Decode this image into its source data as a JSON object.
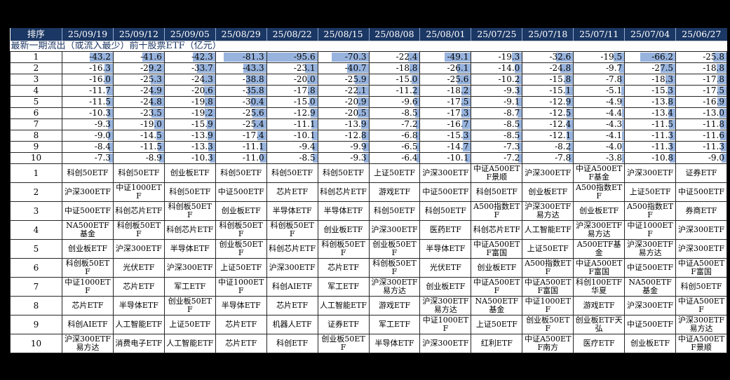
{
  "colors": {
    "page_bg": "#000000",
    "header_bg": "#1B3764",
    "header_text": "#FFFFFF",
    "header_divider": "#93ABD0",
    "bar_fill": "#98B4DE",
    "grid_line": "#262626",
    "subtitle_text": "#1F3864",
    "cell_text": "#000000"
  },
  "chart_data": {
    "type": "table",
    "title": "最新一期流出（或流入最少）前十股票ETF（亿元）",
    "rank_header": "排序",
    "date_columns": [
      "25/09/19",
      "25/09/12",
      "25/09/05",
      "25/08/29",
      "25/08/22",
      "25/08/15",
      "25/08/08",
      "25/08/01",
      "25/07/25",
      "25/07/18",
      "25/07/11",
      "25/07/04",
      "25/06/27"
    ],
    "ranks": [
      "1",
      "2",
      "3",
      "4",
      "5",
      "6",
      "7",
      "8",
      "9",
      "10"
    ],
    "bar_scale_max": 95.6,
    "flow_rows": [
      [
        "-43.2",
        "-41.6",
        "-42.3",
        "-81.3",
        "-95.6",
        "-70.3",
        "-22.4",
        "-49.1",
        "-19.3",
        "-32.6",
        "-19.5",
        "-66.2",
        "-25.8"
      ],
      [
        "-16.3",
        "-29.2",
        "-33.7",
        "-43.3",
        "-23.1",
        "-40.7",
        "-18.8",
        "-26.1",
        "-14.0",
        "-24.8",
        "-9.7",
        "-27.5",
        "-18.8"
      ],
      [
        "-16.0",
        "-25.3",
        "-24.3",
        "-38.8",
        "-20.0",
        "-25.9",
        "-15.0",
        "-25.6",
        "-10.2",
        "-15.8",
        "-7.8",
        "-18.3",
        "-17.8"
      ],
      [
        "-11.7",
        "-24.9",
        "-20.6",
        "-35.8",
        "-17.8",
        "-22.1",
        "-11.2",
        "-18.2",
        "-9.3",
        "-15.1",
        "-5.1",
        "-15.3",
        "-17.5"
      ],
      [
        "-11.5",
        "-24.8",
        "-19.8",
        "-30.4",
        "-15.0",
        "-20.9",
        "-9.6",
        "-17.5",
        "-9.1",
        "-12.9",
        "-4.9",
        "-13.8",
        "-16.9"
      ],
      [
        "-10.3",
        "-23.5",
        "-19.2",
        "-25.6",
        "-12.9",
        "-20.5",
        "-8.5",
        "-17.3",
        "-8.7",
        "-12.5",
        "-4.4",
        "-13.4",
        "-13.0"
      ],
      [
        "-9.3",
        "-19.0",
        "-15.9",
        "-25.4",
        "-11.1",
        "-13.9",
        "-7.2",
        "-16.7",
        "-8.5",
        "-12.4",
        "-4.3",
        "-11.5",
        "-11.8"
      ],
      [
        "-9.0",
        "-14.5",
        "-13.9",
        "-17.4",
        "-10.1",
        "-12.8",
        "-6.8",
        "-15.3",
        "-8.5",
        "-12.1",
        "-4.1",
        "-11.3",
        "-11.6"
      ],
      [
        "-8.4",
        "-11.5",
        "-13.3",
        "-11.1",
        "-9.4",
        "-9.9",
        "-6.5",
        "-14.7",
        "-7.3",
        "-8.2",
        "-4.0",
        "-11.3",
        "-11.3"
      ],
      [
        "-7.3",
        "-8.9",
        "-10.3",
        "-11.0",
        "-8.5",
        "-9.3",
        "-6.4",
        "-10.1",
        "-7.2",
        "-7.8",
        "-3.8",
        "-10.8",
        "-9.0"
      ]
    ],
    "name_rows": [
      [
        "科创50ETF",
        "科创50ETF",
        "创业板ETF",
        "科创50ETF",
        "科创50ETF",
        "科创50ETF",
        "上证50ETF",
        "沪深300ETF",
        "中证A500ETF景顺",
        "沪深300ETF",
        "中证A500ETF基金",
        "沪深300ETF",
        "证券ETF"
      ],
      [
        "沪深300ETF",
        "中证1000ETF",
        "科创50ETF",
        "中证500ETF",
        "芯片ETF",
        "科创芯片ETF",
        "游戏ETF",
        "中证500ETF",
        "科创50ETF",
        "创业板ETF",
        "A500指数ETF",
        "上证50ETF",
        "中证500ETF"
      ],
      [
        "中证500ETF",
        "科创芯片ETF",
        "科创板50ETF",
        "创业板ETF",
        "半导体ETF",
        "半导体ETF",
        "科创50ETF",
        "科创50ETF",
        "A500指数ETF",
        "沪深300ETF易方达",
        "创业板ETF",
        "A500指数ETF",
        "券商ETF"
      ],
      [
        "NA500ETF基金",
        "科创板50ETF",
        "科创芯片ETF",
        "科创板50ETF",
        "科创板50ETF",
        "创业板ETF",
        "沪深300ETF",
        "医药ETF",
        "科创芯片ETF",
        "人工智能ETF",
        "沪深300ETF易方达",
        "中证1000ETF",
        "沪深300ETF"
      ],
      [
        "创业板ETF",
        "沪深300ETF",
        "半导体ETF",
        "创业板50ETF",
        "科创芯片ETF",
        "科创板50ETF",
        "创业板50ETF",
        "半导体ETF",
        "中证A500ETF富国",
        "上证50ETF",
        "A500ETF基金",
        "沪深300ETF易方达",
        "沪深300ETF"
      ],
      [
        "科创板50ETF",
        "光伏ETF",
        "沪深300ETF",
        "上证50ETF",
        "沪深300ETF",
        "芯片ETF",
        "科创板50ETF",
        "光伏ETF",
        "创业板ETF",
        "A500指数ETF",
        "中证A500ETF富国",
        "中证500ETF",
        "中证A500ETF富国"
      ],
      [
        "中证1000ETF",
        "芯片ETF",
        "军工ETF",
        "中证1000ETF",
        "科创AIETF",
        "军工ETF",
        "沪深300ETF易方达",
        "创业板ETF",
        "中证A500ETF",
        "中证A500ETF富国",
        "科创100ETF华夏",
        "NA500ETF基金",
        "科创50ETF"
      ],
      [
        "芯片ETF",
        "半导体ETF",
        "创业板50ETF",
        "半导体ETF",
        "芯片ETF",
        "人工智能ETF",
        "游戏ETF",
        "沪深300ETF易方达",
        "NA500ETF基金",
        "中证1000ETF",
        "游戏ETF",
        "沪深300ETF",
        "中证A500ETF"
      ],
      [
        "科创AIETF",
        "人工智能ETF",
        "上证50ETF",
        "芯片ETF",
        "机器人ETF",
        "证券ETF",
        "军工ETF",
        "中证1000ETF",
        "上证50ETF",
        "创业板50ETF",
        "创业板ETF天弘",
        "中证500ETF",
        "沪深300ETF易方达"
      ],
      [
        "沪深300ETF易方达",
        "消费电子ETF",
        "人工智能ETF",
        "芯片ETF",
        "科创ETF",
        "创业板50ETF",
        "半导体ETF",
        "沪深300ETF",
        "红利ETF",
        "中证A500ETF南方",
        "医疗ETF",
        "创业板ETF",
        "中证A500ETF景顺"
      ]
    ]
  }
}
